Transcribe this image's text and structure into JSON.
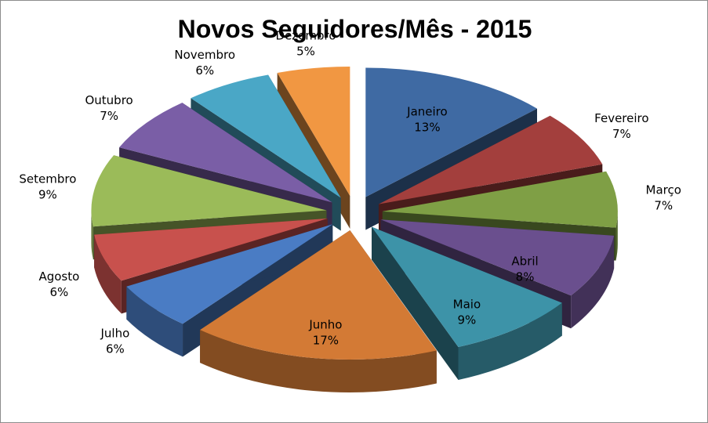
{
  "chart_data": {
    "type": "pie",
    "title": "Novos Seguidores/Mês - 2015",
    "exploded": true,
    "three_d": true,
    "label_format": "category + percent",
    "categories": [
      "Janeiro",
      "Fevereiro",
      "Março",
      "Abril",
      "Maio",
      "Junho",
      "Julho",
      "Agosto",
      "Setembro",
      "Outubro",
      "Novembro",
      "Dezembro"
    ],
    "values": [
      13,
      7,
      7,
      8,
      9,
      17,
      6,
      6,
      9,
      7,
      6,
      5
    ],
    "labels": [
      "13%",
      "7%",
      "7%",
      "8%",
      "9%",
      "17%",
      "6%",
      "6%",
      "9%",
      "7%",
      "6%",
      "5%"
    ],
    "colors": [
      "#3f6aa3",
      "#a33f3d",
      "#7f9f45",
      "#6a4f8e",
      "#3d93a8",
      "#d37a35",
      "#4a7cc4",
      "#c8514d",
      "#9bbb59",
      "#7a5ea6",
      "#4aa7c6",
      "#f19742"
    ]
  }
}
